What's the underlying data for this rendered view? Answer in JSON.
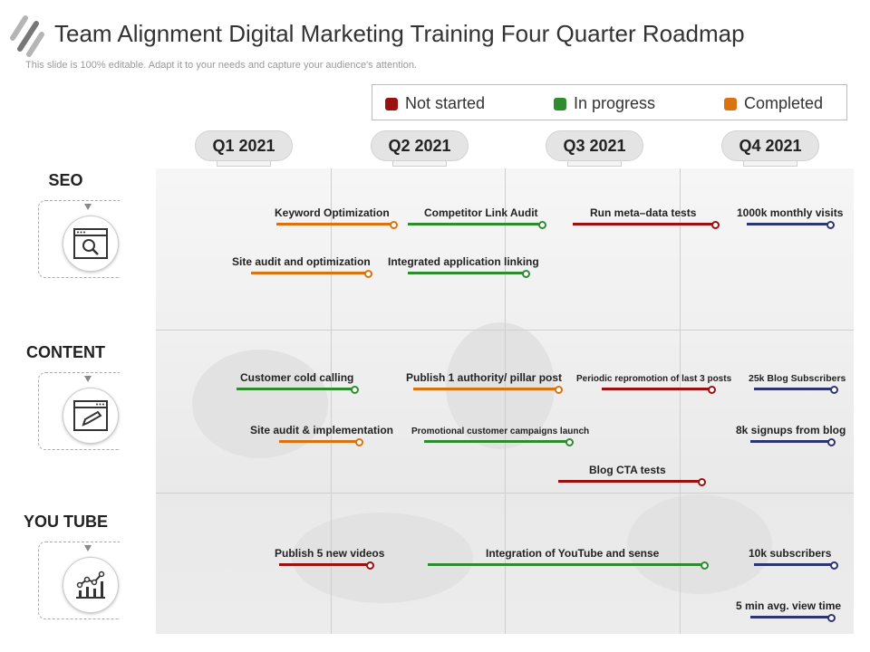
{
  "title": "Team Alignment Digital Marketing Training Four Quarter Roadmap",
  "subtitle": "This slide is 100% editable. Adapt it to your needs and capture your audience's attention.",
  "colors": {
    "not_started": "#9b1010",
    "in_progress": "#2e8b2e",
    "completed": "#d9720f",
    "future": "#2e3470"
  },
  "legend": [
    {
      "label": "Not started",
      "status": "not_started"
    },
    {
      "label": "In progress",
      "status": "in_progress"
    },
    {
      "label": "Completed",
      "status": "completed"
    }
  ],
  "quarters": [
    "Q1 2021",
    "Q2 2021",
    "Q3 2021",
    "Q4 2021"
  ],
  "rows": [
    {
      "label": "SEO",
      "icon": "search-window-icon",
      "tasks": [
        {
          "label": "Keyword Optimization",
          "status": "completed"
        },
        {
          "label": "Competitor Link Audit",
          "status": "in_progress"
        },
        {
          "label": "Run meta–data tests",
          "status": "not_started"
        },
        {
          "label": "1000k monthly visits",
          "status": "future"
        },
        {
          "label": "Site audit and optimization",
          "status": "completed"
        },
        {
          "label": "Integrated application linking",
          "status": "in_progress"
        }
      ]
    },
    {
      "label": "CONTENT",
      "icon": "edit-window-icon",
      "tasks": [
        {
          "label": "Customer cold calling",
          "status": "in_progress"
        },
        {
          "label": "Publish 1 authority/ pillar post",
          "status": "completed"
        },
        {
          "label": "Periodic repromotion of last 3 posts",
          "status": "not_started"
        },
        {
          "label": "25k Blog Subscribers",
          "status": "future"
        },
        {
          "label": "Site audit & implementation",
          "status": "completed"
        },
        {
          "label": "Promotional customer campaigns launch",
          "status": "in_progress"
        },
        {
          "label": "8k signups from blog",
          "status": "future"
        },
        {
          "label": "Blog CTA tests",
          "status": "not_started"
        }
      ]
    },
    {
      "label": "YOU TUBE",
      "icon": "growth-chart-icon",
      "tasks": [
        {
          "label": "Publish 5 new videos",
          "status": "not_started"
        },
        {
          "label": "Integration of YouTube and sense",
          "status": "in_progress"
        },
        {
          "label": "10k subscribers",
          "status": "future"
        },
        {
          "label": "5 min avg.  view time",
          "status": "future"
        }
      ]
    }
  ]
}
